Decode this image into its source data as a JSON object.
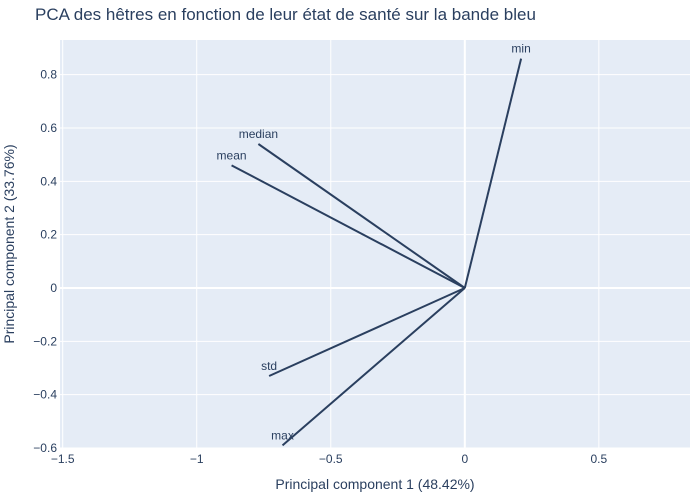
{
  "chart_data": {
    "type": "scatter",
    "title": "PCA des hêtres en fonction de leur état de santé sur la bande bleu",
    "xlabel": "Principal component 1 (48.42%)",
    "ylabel": "Principal component 2 (33.76%)",
    "xlim": [
      -1.51,
      0.84
    ],
    "ylim": [
      -0.6,
      0.93
    ],
    "x_ticks": [
      -1.5,
      -1,
      -0.5,
      0,
      0.5
    ],
    "x_tick_labels": [
      "−1.5",
      "−1",
      "−0.5",
      "0",
      "0.5"
    ],
    "y_ticks": [
      -0.6,
      -0.4,
      -0.2,
      0,
      0.2,
      0.4,
      0.6,
      0.8
    ],
    "y_tick_labels": [
      "−0.6",
      "−0.4",
      "−0.2",
      "0",
      "0.2",
      "0.4",
      "0.6",
      "0.8"
    ],
    "grid": true,
    "series": [
      {
        "name": "min",
        "values": [
          [
            0,
            0
          ],
          [
            0.21,
            0.86
          ]
        ]
      },
      {
        "name": "median",
        "values": [
          [
            0,
            0
          ],
          [
            -0.77,
            0.54
          ]
        ]
      },
      {
        "name": "mean",
        "values": [
          [
            0,
            0
          ],
          [
            -0.87,
            0.46
          ]
        ]
      },
      {
        "name": "std",
        "values": [
          [
            0,
            0
          ],
          [
            -0.73,
            -0.33
          ]
        ]
      },
      {
        "name": "max",
        "values": [
          [
            0,
            0
          ],
          [
            -0.68,
            -0.59
          ]
        ]
      }
    ],
    "colors": {
      "background": "#E5ECF6",
      "text": "#2a3f5f",
      "line": "#2a3f5f",
      "grid": "#ffffff"
    }
  }
}
